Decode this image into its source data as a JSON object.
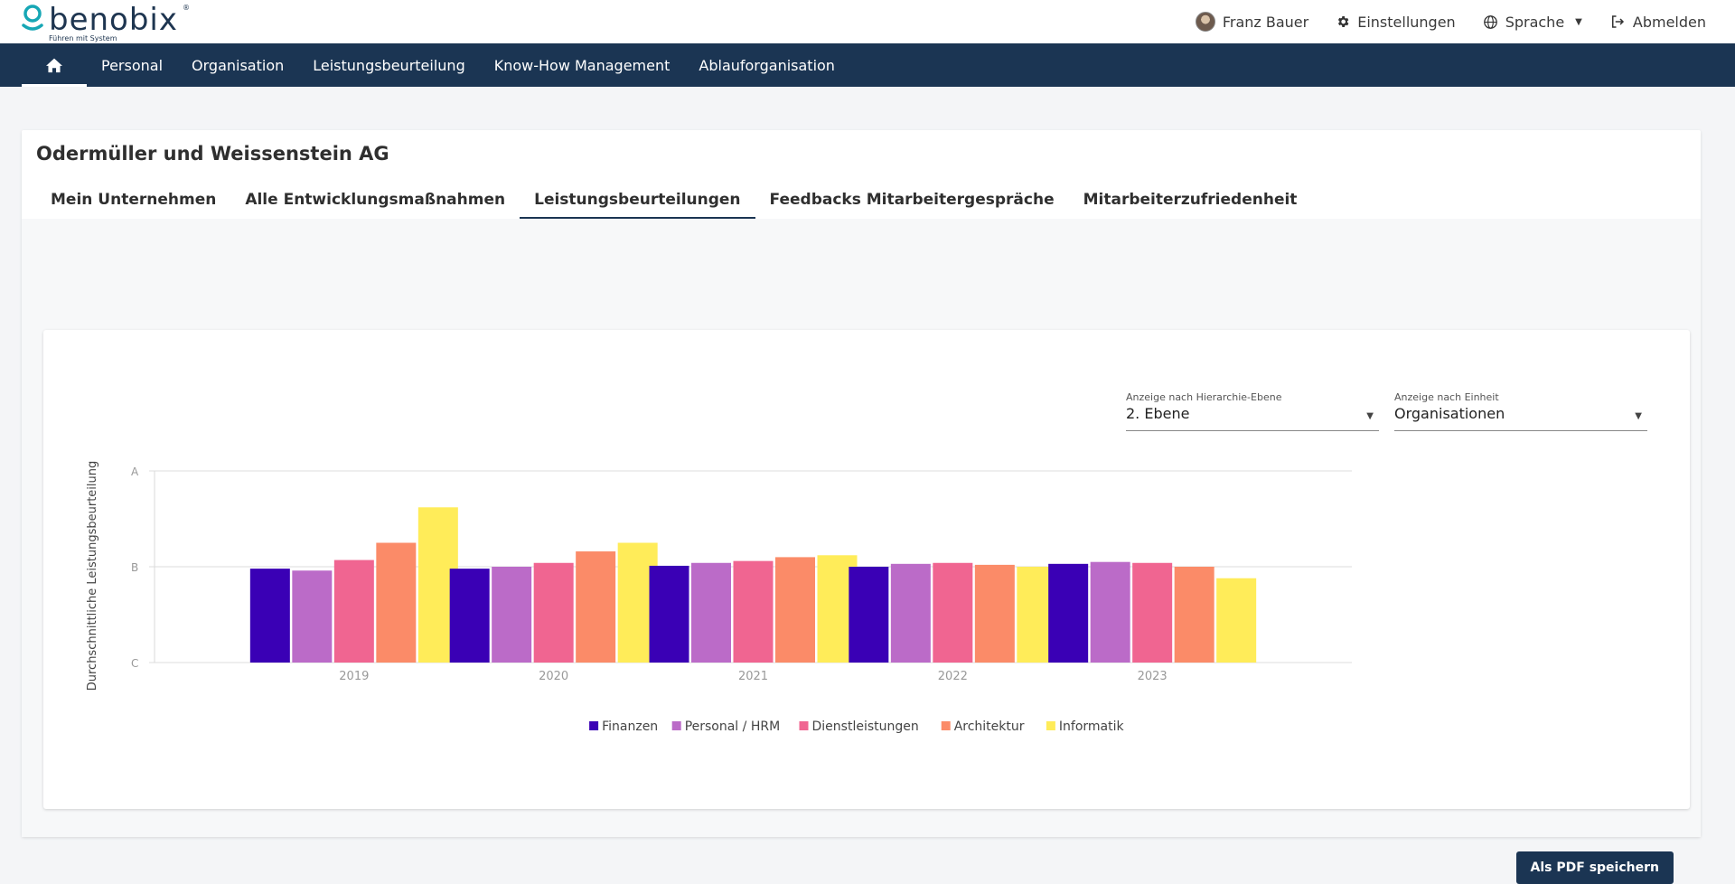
{
  "app": {
    "logo_text": "benobix",
    "logo_tagline": "Führen mit System",
    "logo_reg": "®"
  },
  "topbar": {
    "user_name": "Franz Bauer",
    "settings_label": "Einstellungen",
    "language_label": "Sprache",
    "logout_label": "Abmelden"
  },
  "nav": {
    "items": [
      "Personal",
      "Organisation",
      "Leistungsbeurteilung",
      "Know-How Management",
      "Ablauforganisation"
    ]
  },
  "page": {
    "title": "Odermüller und Weissenstein AG",
    "tabs": [
      "Mein Unternehmen",
      "Alle Entwicklungsmaßnahmen",
      "Leistungsbeurteilungen",
      "Feedbacks Mitarbeitergespräche",
      "Mitarbeiterzufriedenheit"
    ],
    "active_tab": 2
  },
  "filters": {
    "hierarchy": {
      "label": "Anzeige nach Hierarchie-Ebene",
      "value": "2. Ebene"
    },
    "unit": {
      "label": "Anzeige nach Einheit",
      "value": "Organisationen"
    }
  },
  "actions": {
    "pdf_label": "Als PDF speichern"
  },
  "chart_data": {
    "type": "bar",
    "ylabel": "Durchschnittliche Leistungsbeurteilung",
    "y_ticks": [
      "A",
      "B",
      "C"
    ],
    "y_scale_note": "C=0, B=1, A=2",
    "ylim": [
      0,
      2
    ],
    "categories": [
      "2019",
      "2020",
      "2021",
      "2022",
      "2023"
    ],
    "grid": true,
    "legend_position": "bottom",
    "series": [
      {
        "name": "Finanzen",
        "color": "#3a00b5",
        "values": [
          0.98,
          0.98,
          1.01,
          1.0,
          1.03
        ]
      },
      {
        "name": "Personal / HRM",
        "color": "#bb6bc8",
        "values": [
          0.96,
          1.0,
          1.04,
          1.03,
          1.05
        ]
      },
      {
        "name": "Dienstleistungen",
        "color": "#f06591",
        "values": [
          1.07,
          1.04,
          1.06,
          1.04,
          1.04
        ]
      },
      {
        "name": "Architektur",
        "color": "#fb8b68",
        "values": [
          1.25,
          1.16,
          1.1,
          1.02,
          1.0
        ]
      },
      {
        "name": "Informatik",
        "color": "#ffec59",
        "values": [
          1.62,
          1.25,
          1.12,
          1.0,
          0.88
        ]
      }
    ]
  }
}
